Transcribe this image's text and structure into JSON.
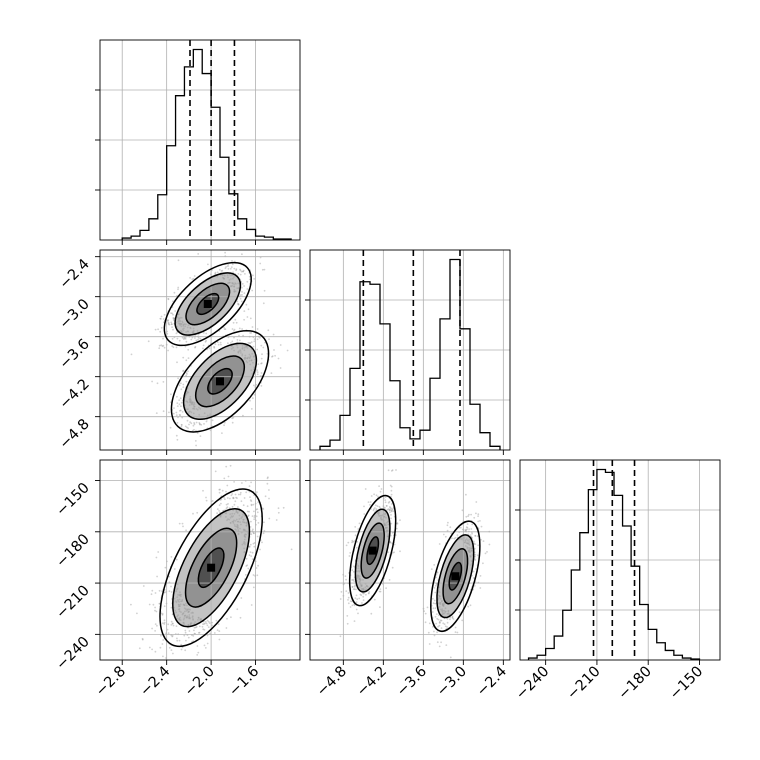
{
  "chart_data": {
    "type": "corner",
    "title": "",
    "parameters": [
      {
        "label": "",
        "range": [
          -3.0,
          -1.2
        ],
        "ticks": [
          "−2.8",
          "−2.4",
          "−2.0",
          "−1.6"
        ],
        "tick_values": [
          -2.8,
          -2.4,
          -2.0,
          -1.6
        ]
      },
      {
        "label": "",
        "range": [
          -5.3,
          -2.3
        ],
        "ticks": [
          "−4.8",
          "−4.2",
          "−3.6",
          "−3.0",
          "−2.4"
        ],
        "tick_values": [
          -4.8,
          -4.2,
          -3.6,
          -3.0,
          -2.4
        ]
      },
      {
        "label": "",
        "range": [
          -255,
          -138
        ],
        "ticks": [
          "−240",
          "−210",
          "−180",
          "−150"
        ],
        "tick_values": [
          -240,
          -210,
          -180,
          -150
        ]
      }
    ],
    "grid": true,
    "quantile_style": "dashed",
    "diagonal": [
      {
        "param": 0,
        "bin_edges": [
          -2.8,
          -2.72,
          -2.64,
          -2.56,
          -2.48,
          -2.4,
          -2.32,
          -2.24,
          -2.16,
          -2.08,
          -2.0,
          -1.92,
          -1.84,
          -1.76,
          -1.68,
          -1.6,
          -1.52,
          -1.44,
          -1.36,
          -1.28
        ],
        "counts": [
          2,
          4,
          10,
          22,
          47,
          98,
          150,
          180,
          198,
          173,
          138,
          86,
          48,
          22,
          11,
          4,
          3,
          1,
          1
        ],
        "quantiles": [
          -2.19,
          -2.0,
          -1.79
        ]
      },
      {
        "param": 1,
        "bin_edges": [
          -5.15,
          -5.0,
          -4.85,
          -4.7,
          -4.55,
          -4.4,
          -4.25,
          -4.1,
          -3.95,
          -3.8,
          -3.65,
          -3.5,
          -3.35,
          -3.2,
          -3.05,
          -2.9,
          -2.75,
          -2.6,
          -2.45
        ],
        "counts": [
          3,
          8,
          28,
          66,
          136,
          134,
          102,
          56,
          18,
          9,
          16,
          58,
          106,
          154,
          98,
          37,
          14,
          3
        ],
        "quantiles": [
          -4.5,
          -3.75,
          -3.05
        ]
      },
      {
        "param": 2,
        "bin_edges": [
          -250,
          -245,
          -240,
          -235,
          -230,
          -225,
          -220,
          -215,
          -210,
          -205,
          -200,
          -195,
          -190,
          -185,
          -180,
          -175,
          -170,
          -165,
          -160,
          -155,
          -150
        ],
        "counts": [
          2,
          5,
          12,
          25,
          52,
          94,
          133,
          178,
          199,
          196,
          172,
          140,
          98,
          58,
          32,
          18,
          10,
          5,
          2,
          1
        ],
        "quantiles": [
          -212,
          -201,
          -188
        ]
      }
    ],
    "pairs": [
      {
        "x_param": 0,
        "y_param": 1,
        "modes": [
          {
            "center": [
              -2.03,
              -3.11
            ],
            "sigma": [
              0.17,
              0.27
            ],
            "rho": 0.6
          },
          {
            "center": [
              -1.92,
              -4.27
            ],
            "sigma": [
              0.19,
              0.33
            ],
            "rho": 0.55
          }
        ]
      },
      {
        "x_param": 0,
        "y_param": 2,
        "modes": [
          {
            "center": [
              -2.0,
              -201
            ],
            "sigma": [
              0.2,
              20
            ],
            "rho": 0.62
          }
        ]
      },
      {
        "x_param": 1,
        "y_param": 2,
        "modes": [
          {
            "center": [
              -4.36,
              -191
            ],
            "sigma": [
              0.15,
              14
            ],
            "rho": 0.55
          },
          {
            "center": [
              -3.12,
              -206
            ],
            "sigma": [
              0.16,
              14
            ],
            "rho": 0.55
          }
        ]
      }
    ],
    "contour_levels_sigma": [
      0.5,
      1.0,
      1.5,
      2.0
    ]
  }
}
